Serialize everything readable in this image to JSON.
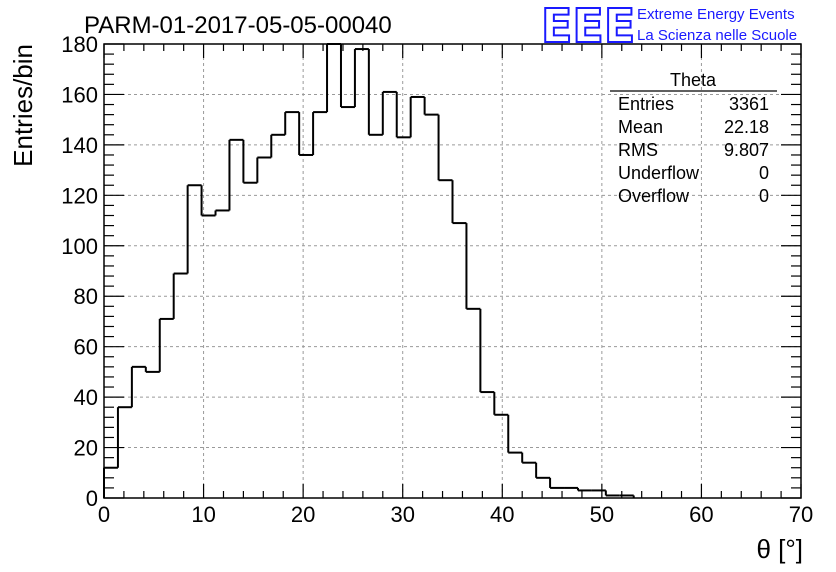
{
  "header": {
    "title": "PARM-01-2017-05-05-00040",
    "logo_mark": "EEE",
    "logo_line1": "Extreme Energy Events",
    "logo_line2": "La Scienza nelle Scuole",
    "accent_color": "#1a1aff"
  },
  "stats_box": {
    "name": "Theta",
    "rows": [
      {
        "label": "Entries",
        "value": "3361"
      },
      {
        "label": "Mean",
        "value": "22.18"
      },
      {
        "label": "RMS",
        "value": "9.807"
      },
      {
        "label": "Underflow",
        "value": "0"
      },
      {
        "label": "Overflow",
        "value": "0"
      }
    ]
  },
  "chart_data": {
    "type": "bar",
    "title": "PARM-01-2017-05-05-00040",
    "xlabel": "θ [°]",
    "ylabel": "Entries/bin",
    "xlim": [
      0,
      70
    ],
    "ylim": [
      0,
      180
    ],
    "grid": true,
    "bin_width": 1.4,
    "xticks": [
      0,
      10,
      20,
      30,
      40,
      50,
      60,
      70
    ],
    "yticks": [
      0,
      20,
      40,
      60,
      80,
      100,
      120,
      140,
      160,
      180
    ],
    "values": [
      12,
      36,
      52,
      50,
      71,
      89,
      124,
      112,
      114,
      142,
      125,
      135,
      144,
      153,
      136,
      153,
      180,
      155,
      178,
      144,
      161,
      143,
      159,
      152,
      126,
      109,
      75,
      42,
      33,
      18,
      14,
      8,
      4,
      4,
      3,
      3,
      1,
      1,
      0,
      0,
      0,
      0,
      0,
      0,
      0,
      0,
      0,
      0,
      0,
      0
    ]
  }
}
